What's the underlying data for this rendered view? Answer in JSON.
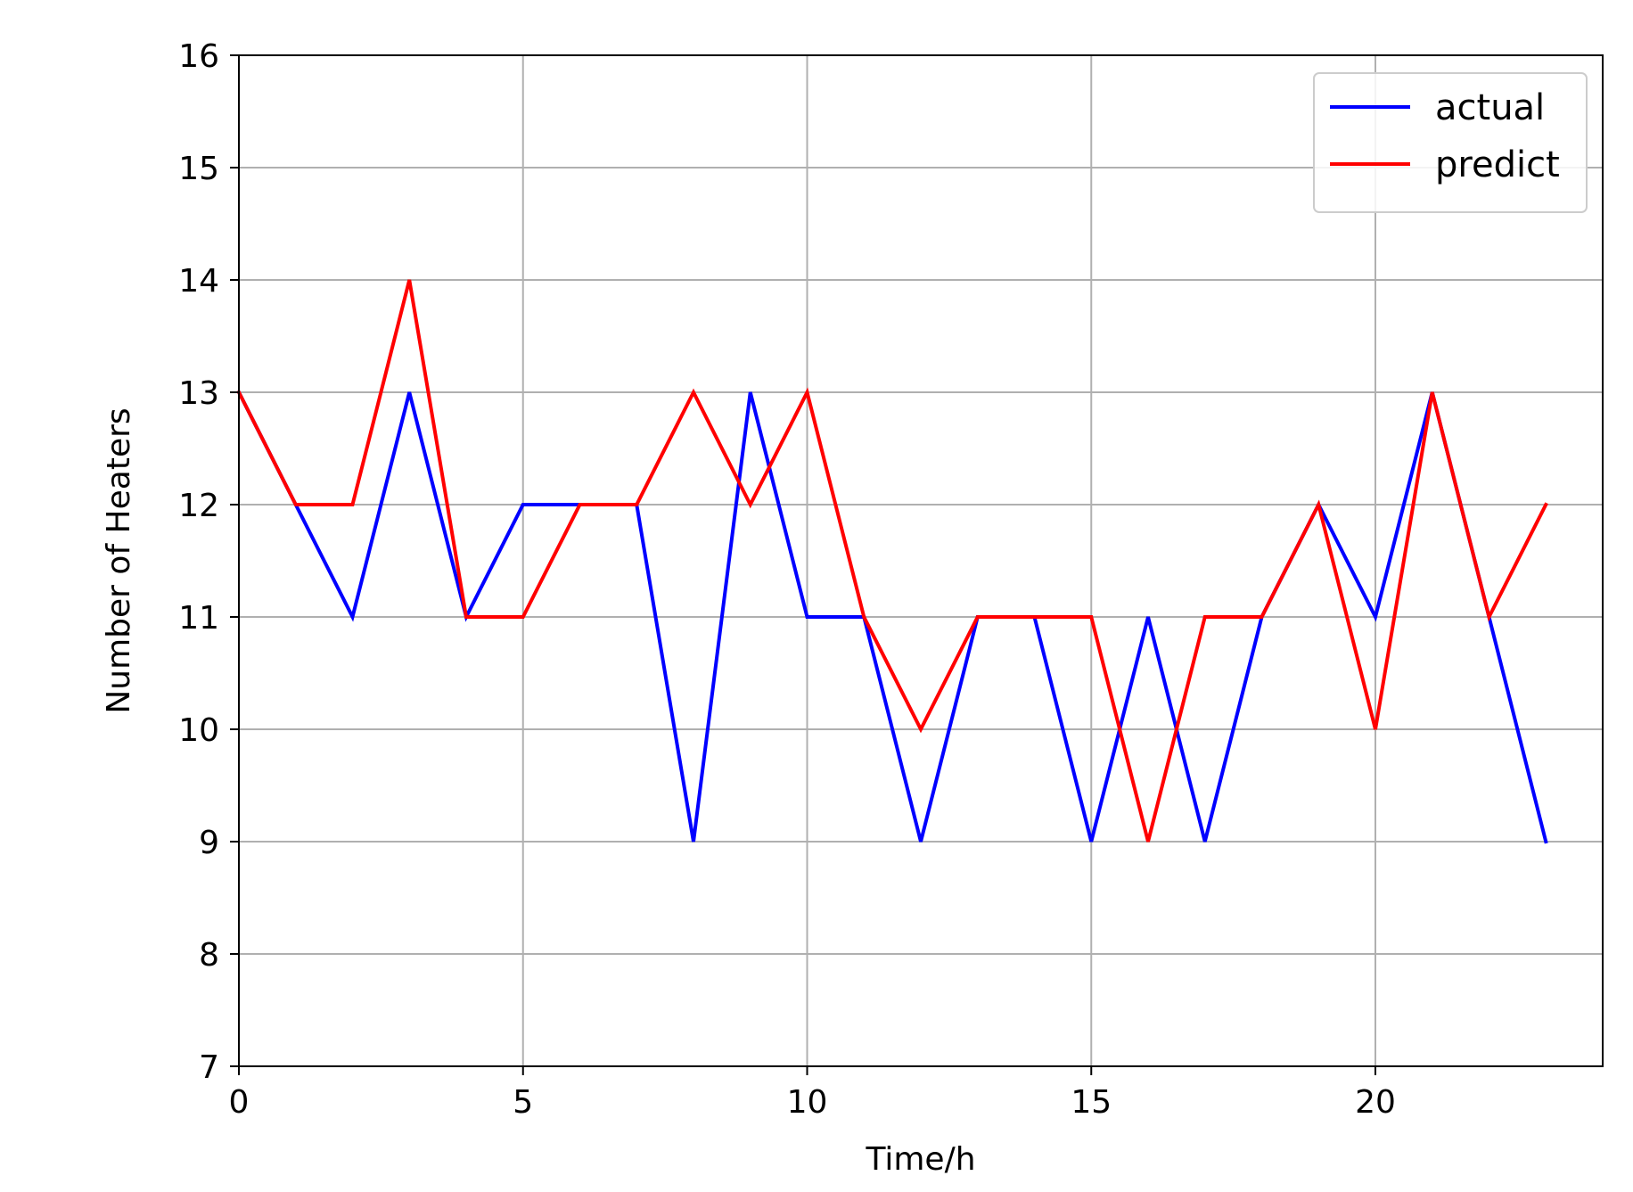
{
  "chart_data": {
    "type": "line",
    "title": "",
    "xlabel": "Time/h",
    "ylabel": "Number of Heaters",
    "xlim": [
      0,
      24
    ],
    "ylim": [
      7,
      16
    ],
    "xticks": [
      0,
      5,
      10,
      15,
      20
    ],
    "yticks": [
      7,
      8,
      9,
      10,
      11,
      12,
      13,
      14,
      15,
      16
    ],
    "xtick_labels": [
      "0",
      "5",
      "10",
      "15",
      "20"
    ],
    "ytick_labels": [
      "7",
      "8",
      "9",
      "10",
      "11",
      "12",
      "13",
      "14",
      "15",
      "16"
    ],
    "grid": true,
    "legend_position": "top-right",
    "x": [
      0,
      1,
      2,
      3,
      4,
      5,
      6,
      7,
      8,
      9,
      10,
      11,
      12,
      13,
      14,
      15,
      16,
      17,
      18,
      19,
      20,
      21,
      22,
      23
    ],
    "series": [
      {
        "name": "actual",
        "color": "#0000ff",
        "values": [
          13,
          12,
          11,
          13,
          11,
          12,
          12,
          12,
          9,
          13,
          11,
          11,
          9,
          11,
          11,
          9,
          11,
          9,
          11,
          12,
          11,
          13,
          11,
          9
        ]
      },
      {
        "name": "predict",
        "color": "#ff0000",
        "values": [
          13,
          12,
          12,
          14,
          11,
          11,
          12,
          12,
          13,
          12,
          13,
          11,
          10,
          11,
          11,
          11,
          9,
          11,
          11,
          12,
          10,
          13,
          11,
          12
        ]
      }
    ]
  }
}
